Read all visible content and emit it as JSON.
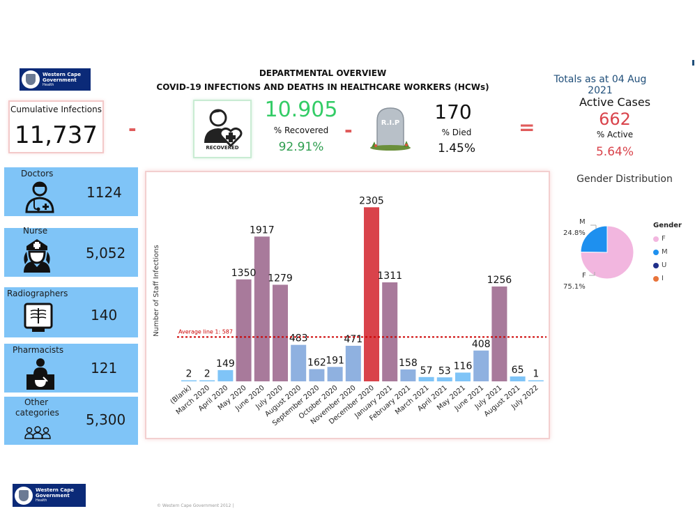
{
  "logos": {
    "top": {
      "line1": "Western Cape",
      "line2": "Government",
      "line3": "Health"
    },
    "bottom": {
      "line1": "Western Cape",
      "line2": "Government",
      "line3": "Health"
    }
  },
  "header": {
    "title": "DEPARTMENTAL OVERVIEW",
    "subtitle": "COVID-19 INFECTIONS AND DEATHS IN HEALTHCARE WORKERS (HCWs)",
    "totals": "Totals as at 04 Aug 2021"
  },
  "cumulative": {
    "label": "Cumulative Infections",
    "value": "11,737"
  },
  "operators": {
    "minus": "-",
    "equals": "="
  },
  "recovered": {
    "icon": "recovered-person-heart-icon",
    "caption": "RECOVERED",
    "value": "10.905",
    "label": "% Recovered",
    "pct": "92.91%"
  },
  "died": {
    "icon": "tombstone-icon",
    "stone_text": "R.I.P",
    "value": "170",
    "label": "% Died",
    "pct": "1.45%"
  },
  "active": {
    "title": "Active Cases",
    "value": "662",
    "label": "% Active",
    "pct": "5.64%"
  },
  "categories": [
    {
      "label": "Doctors",
      "value": "1124",
      "icon": "doctor-icon"
    },
    {
      "label": "Nurse",
      "value": "5,052",
      "icon": "nurse-icon"
    },
    {
      "label": "Radiographers",
      "value": "140",
      "icon": "x-ray-icon"
    },
    {
      "label": "Pharmacists",
      "value": "121",
      "icon": "pharmacist-icon"
    },
    {
      "label": "Other categories",
      "value": "5,300",
      "icon": "group-icon"
    }
  ],
  "gender": {
    "title": "Gender Distribution",
    "legend_title": "Gender",
    "slices": [
      {
        "label": "F",
        "pct": "75.1%",
        "value": 75.1,
        "color": "#f2b6df"
      },
      {
        "label": "M",
        "pct": "24.8%",
        "value": 24.8,
        "color": "#1e90ef"
      }
    ],
    "legend": [
      {
        "label": "F",
        "color": "#f2b6df"
      },
      {
        "label": "M",
        "color": "#1e90ef"
      },
      {
        "label": "U",
        "color": "#1f2f8a"
      },
      {
        "label": "I",
        "color": "#e8743b"
      }
    ]
  },
  "colors": {
    "high": "#d9434b",
    "mid": "#a87a9b",
    "low": "#8fb1e0",
    "min": "#7fc4f7",
    "avg_line": "#cc0000"
  },
  "chart_data": {
    "type": "bar",
    "title": "",
    "xlabel": "",
    "ylabel": "Number of Staff Infections",
    "ylim": [
      0,
      2400
    ],
    "categories": [
      "(Blank)",
      "March 2020",
      "April 2020",
      "May 2020",
      "June 2020",
      "July 2020",
      "August 2020",
      "September 2020",
      "October 2020",
      "November 2020",
      "December 2020",
      "January 2021",
      "February 2021",
      "March 2021",
      "April 2021",
      "May 2021",
      "June 2021",
      "July 2021",
      "August 2021",
      "July 2022"
    ],
    "values": [
      2,
      2,
      149,
      1350,
      1917,
      1279,
      483,
      162,
      191,
      471,
      2305,
      1311,
      158,
      57,
      53,
      116,
      408,
      1256,
      65,
      1
    ],
    "average": {
      "label": "Average line 1: 587",
      "value": 587
    },
    "grid": false,
    "legend": "none"
  },
  "footer": "© Western Cape Government 2012  |"
}
